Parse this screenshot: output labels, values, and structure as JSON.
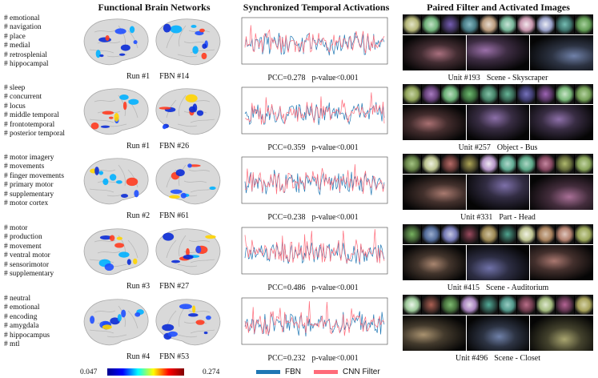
{
  "headers": {
    "fbn": "Functional Brain Networks",
    "sync": "Synchronized Temporal Activations",
    "pair": "Paired Filter and Activated Images"
  },
  "rows": [
    {
      "keywords": [
        "# emotional",
        "# navigation",
        "# place",
        "# medial",
        "# retrosplenial",
        "# hippocampal"
      ],
      "run": "Run #1",
      "fbn": "FBN #14",
      "pcc": "PCC=0.278",
      "pvalue": "p-value<0.001",
      "unit": "Unit #193",
      "category": "Scene - Skyscraper"
    },
    {
      "keywords": [
        "# sleep",
        "# concurrent",
        "# locus",
        "# middle temporal",
        "# frontotemporal",
        "# posterior temporal"
      ],
      "run": "Run #1",
      "fbn": "FBN #26",
      "pcc": "PCC=0.359",
      "pvalue": "p-value<0.001",
      "unit": "Unit #257",
      "category": "Object - Bus"
    },
    {
      "keywords": [
        "# motor imagery",
        "# movements",
        "# finger movements",
        "# primary motor",
        "# supplementary",
        "# motor cortex"
      ],
      "run": "Run #2",
      "fbn": "FBN #61",
      "pcc": "PCC=0.238",
      "pvalue": "p-value<0.001",
      "unit": "Unit #331",
      "category": "Part - Head"
    },
    {
      "keywords": [
        "# motor",
        "# production",
        "# movement",
        "# ventral motor",
        "# sensorimotor",
        "# supplementary"
      ],
      "run": "Run #3",
      "fbn": "FBN #27",
      "pcc": "PCC=0.486",
      "pvalue": "p-value<0.001",
      "unit": "Unit #415",
      "category": "Scene - Auditorium"
    },
    {
      "keywords": [
        "# neutral",
        "# emotional",
        "# encoding",
        "# amygdala",
        "# hippocampus",
        "# mtl"
      ],
      "run": "Run #4",
      "fbn": "FBN #53",
      "pcc": "PCC=0.232",
      "pvalue": "p-value<0.001",
      "unit": "Unit #496",
      "category": "Scene - Closet"
    }
  ],
  "colorbar": {
    "min": "0.047",
    "max": "0.274"
  },
  "legend": {
    "fbn": "FBN",
    "cnn": "CNN Filter"
  },
  "colors": {
    "fbn": "#1f77b4",
    "cnn": "#ff6b7a",
    "brain": "#d9d9d9"
  },
  "icons": {
    "brain_left": "brain-lateral-left-icon",
    "brain_right": "brain-lateral-right-icon"
  }
}
